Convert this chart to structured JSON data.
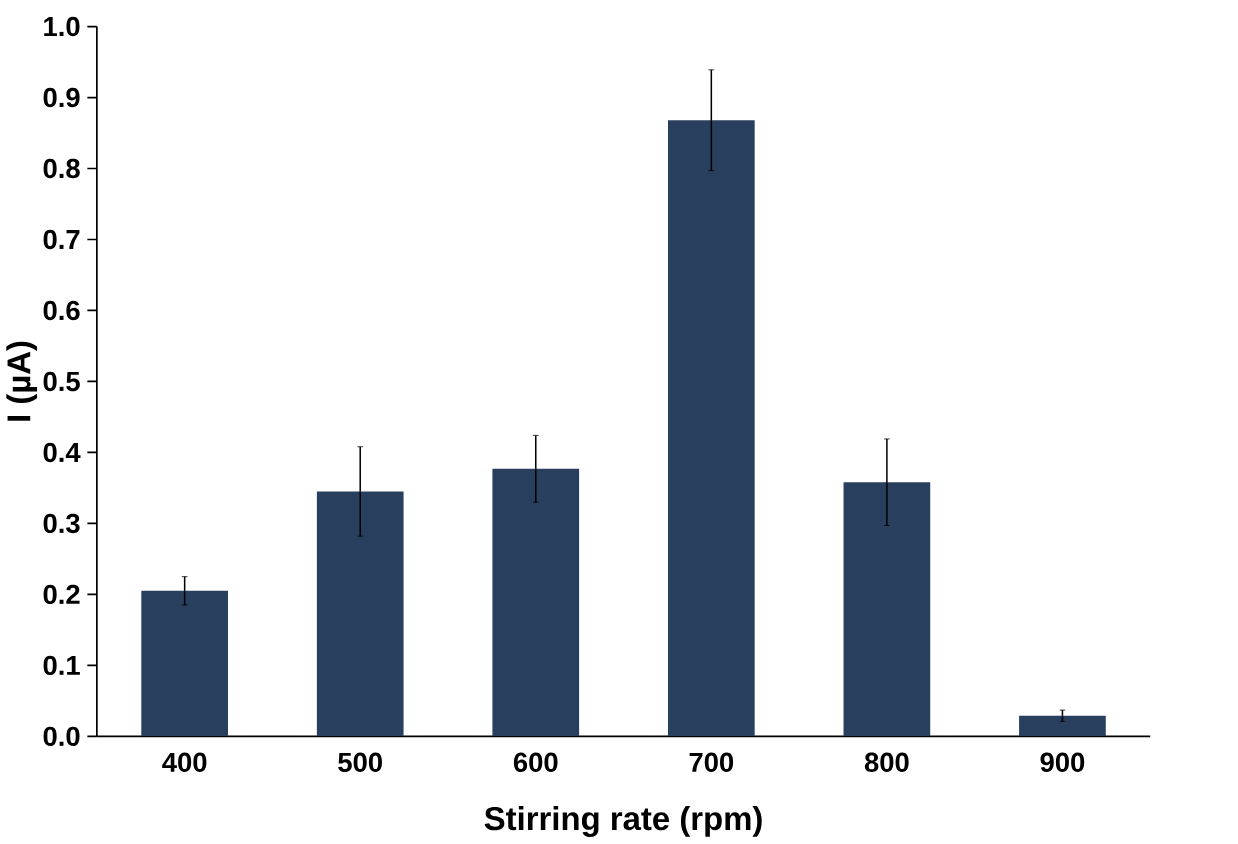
{
  "chart_data": {
    "type": "bar",
    "xlabel": "Stirring rate (rpm)",
    "ylabel": "I (µA)",
    "categories": [
      "400",
      "500",
      "600",
      "700",
      "800",
      "900"
    ],
    "values": [
      0.205,
      0.345,
      0.377,
      0.868,
      0.358,
      0.029
    ],
    "errors": [
      0.02,
      0.063,
      0.047,
      0.071,
      0.061,
      0.008
    ],
    "color": "#283f5e",
    "ylim": [
      0,
      1.0
    ],
    "yticks": [
      {
        "value": 0,
        "label": "0.0"
      },
      0.1,
      0.2,
      0.3,
      0.4,
      0.5,
      0.6,
      0.7,
      0.8,
      0.9,
      {
        "value": 1,
        "label": "1.0"
      }
    ],
    "grid": false
  }
}
